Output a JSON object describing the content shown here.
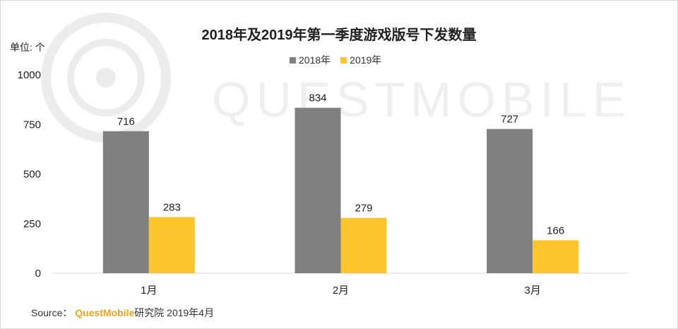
{
  "chart_data": {
    "type": "bar",
    "title": "2018年及2019年第一季度游戏版号下发数量",
    "unit_label": "单位: 个",
    "categories": [
      "1月",
      "2月",
      "3月"
    ],
    "series": [
      {
        "name": "2018年",
        "values": [
          716,
          834,
          727
        ],
        "color": "#808080"
      },
      {
        "name": "2019年",
        "values": [
          283,
          279,
          166
        ],
        "color": "#fdc42b"
      }
    ],
    "y_ticks": [
      "0",
      "250",
      "500",
      "750",
      "1000"
    ],
    "ylim": [
      0,
      1000
    ],
    "legend_position": "top-center",
    "grid": false
  },
  "source": {
    "prefix": "Source：",
    "brand": "QuestMobile",
    "suffix": "研究院 2019年4月"
  },
  "watermark_text": "QUESTMOBILE"
}
